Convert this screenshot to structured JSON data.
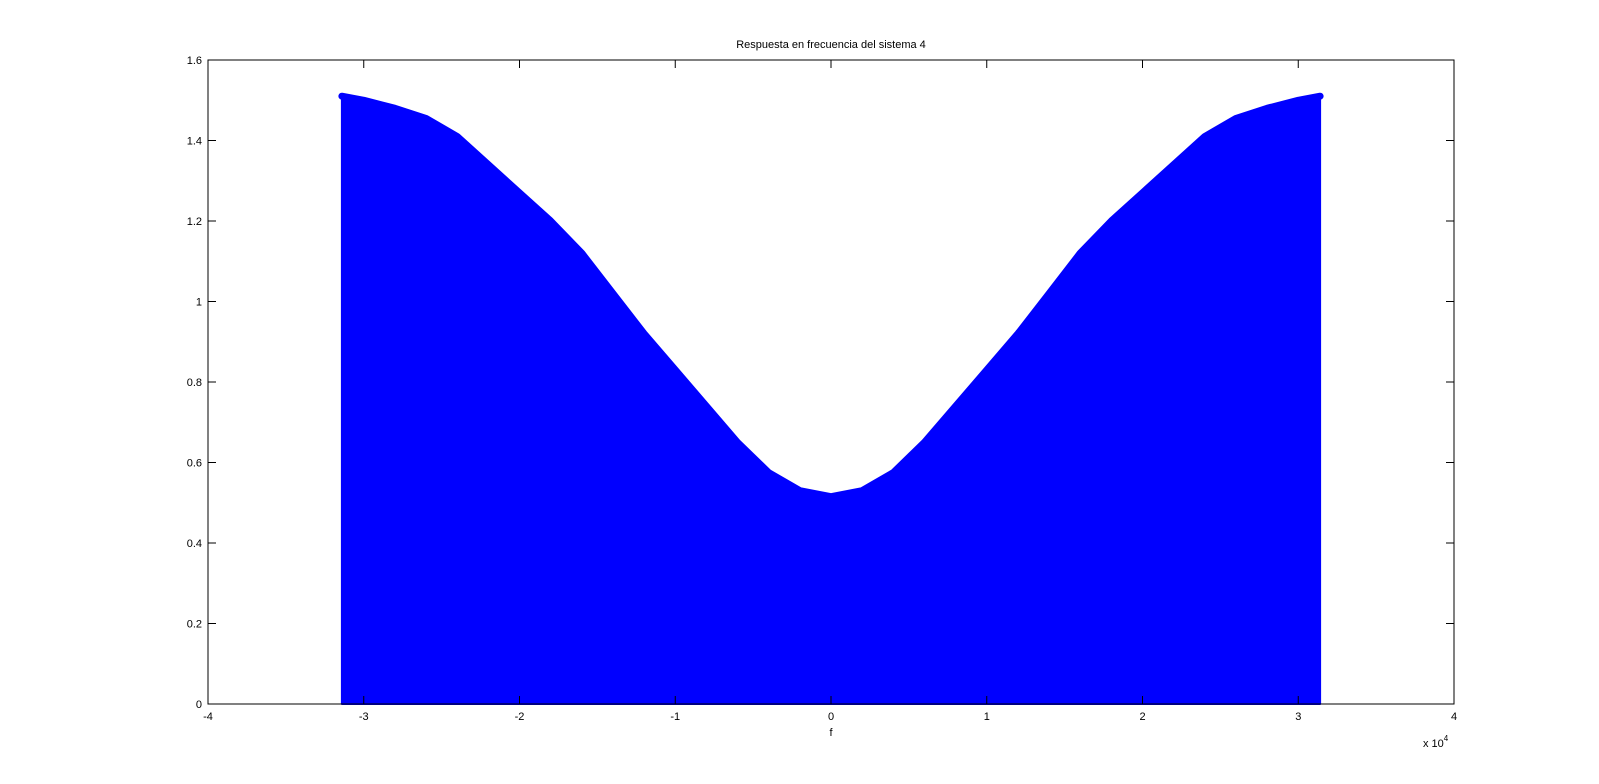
{
  "chart_data": {
    "type": "area",
    "title": "Respuesta en frecuencia del sistema 4",
    "xlabel": "f",
    "ylabel": "",
    "x_multiplier": "x 10",
    "x_multiplier_exp": "4",
    "xlim": [
      -4,
      4
    ],
    "ylim": [
      0,
      1.6
    ],
    "xticks": [
      -4,
      -3,
      -2,
      -1,
      0,
      1,
      2,
      3,
      4
    ],
    "xtick_labels": [
      "-4",
      "-3",
      "-2",
      "-1",
      "0",
      "1",
      "2",
      "3",
      "4"
    ],
    "yticks": [
      0,
      0.2,
      0.4,
      0.6,
      0.8,
      1.0,
      1.2,
      1.4,
      1.6
    ],
    "ytick_labels": [
      "0",
      "0.2",
      "0.4",
      "0.6",
      "0.8",
      "1",
      "1.2",
      "1.4",
      "1.6"
    ],
    "grid": false,
    "color": "#0000ff",
    "series": [
      {
        "x": [
          -3.14,
          -3.0,
          -2.8,
          -2.6,
          -2.4,
          -2.2,
          -2.0,
          -1.8,
          -1.6,
          -1.4,
          -1.2,
          -1.0,
          -0.8,
          -0.6,
          -0.4,
          -0.2,
          0.0,
          0.2,
          0.4,
          0.6,
          0.8,
          1.0,
          1.2,
          1.4,
          1.6,
          1.8,
          2.0,
          2.2,
          2.4,
          2.6,
          2.8,
          3.0,
          3.14
        ],
        "values": [
          1.51,
          1.5,
          1.48,
          1.455,
          1.41,
          1.34,
          1.27,
          1.2,
          1.12,
          1.02,
          0.92,
          0.83,
          0.74,
          0.65,
          0.575,
          0.53,
          0.515,
          0.53,
          0.575,
          0.65,
          0.74,
          0.83,
          0.92,
          1.02,
          1.12,
          1.2,
          1.27,
          1.34,
          1.41,
          1.455,
          1.48,
          1.5,
          1.51
        ]
      }
    ]
  }
}
